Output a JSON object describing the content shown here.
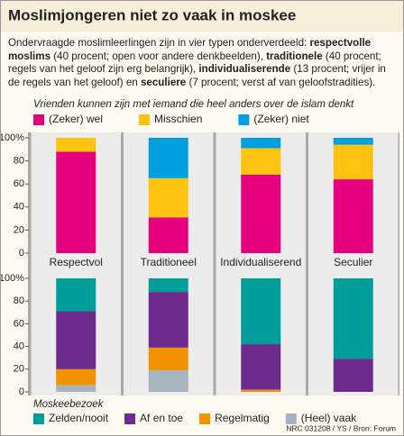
{
  "title": "Moslimjongeren niet zo vaak in moskee",
  "intro": [
    {
      "text": "Ondervraagde moslimleerlingen zijn in vier typen onderverdeeld: ",
      "bold": false
    },
    {
      "text": "respectvolle moslims",
      "bold": true
    },
    {
      "text": " (40 procent; open voor andere denkbeelden), ",
      "bold": false
    },
    {
      "text": "traditionele",
      "bold": true
    },
    {
      "text": " (40 procent; regels van het geloof zijn erg belangrijk), ",
      "bold": false
    },
    {
      "text": "individualiserende",
      "bold": true
    },
    {
      "text": " (13 procent; vrijer in de regels van het geloof) en ",
      "bold": false
    },
    {
      "text": "seculiere",
      "bold": true
    },
    {
      "text": " (7 procent; verst af van geloofstradities).",
      "bold": false
    }
  ],
  "chart_data": [
    {
      "type": "bar",
      "stacked": true,
      "stack_order": "normal",
      "legend": "top",
      "subtitle": "Vrienden kunnen zijn met iemand die heel anders over de islam denkt",
      "categories": [
        "Respectvol",
        "Traditioneel",
        "Individualiserend",
        "Seculier"
      ],
      "series": [
        {
          "name": "(Zeker) wel",
          "color": "#e6007e",
          "values": [
            88,
            31,
            68,
            64
          ]
        },
        {
          "name": "Misschien",
          "color": "#ffc20e",
          "values": [
            12,
            34,
            23,
            30
          ]
        },
        {
          "name": "(Zeker) niet",
          "color": "#00a0e0",
          "values": [
            0,
            35,
            9,
            6
          ]
        }
      ],
      "ylim": [
        0,
        100
      ],
      "yticks": [
        0,
        20,
        40,
        60,
        80,
        {
          "value": 100,
          "label": "100%"
        }
      ]
    },
    {
      "type": "bar",
      "stacked": true,
      "stack_order": "reverse",
      "legend": "bottom",
      "legend_title": "Moskeebezoek",
      "series": [
        {
          "name": "Zelden/nooit",
          "color": "#009e9a",
          "values": [
            29,
            12,
            58,
            71
          ]
        },
        {
          "name": "Af en toe",
          "color": "#6b2a8c",
          "values": [
            51,
            49,
            40,
            29
          ]
        },
        {
          "name": "Regelmatig",
          "color": "#f39200",
          "values": [
            14,
            20,
            2,
            0
          ]
        },
        {
          "name": "(Heel) vaak",
          "color": "#a7b4bf",
          "values": [
            6,
            19,
            0,
            0
          ]
        }
      ],
      "ylim": [
        0,
        100
      ],
      "yticks": [
        0,
        20,
        40,
        60,
        80,
        {
          "value": 100,
          "label": "100%"
        }
      ]
    }
  ],
  "source": "NRC 031208 / YS / Bron: Forum"
}
